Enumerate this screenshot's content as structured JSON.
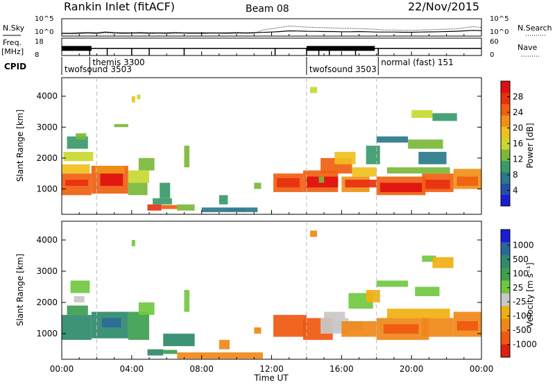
{
  "header": {
    "title": "Rankin Inlet (fitACF)",
    "beam": "Beam 08",
    "date": "22/Nov/2015"
  },
  "chart_data": [
    {
      "type": "line",
      "panel": "sky-noise",
      "left_label": "N.Sky",
      "right_label": "N.Search",
      "left_ticks": [
        "10^5",
        "10^0"
      ],
      "right_ticks": [
        "10^5",
        "10^0"
      ],
      "ylim": [
        1,
        100000
      ],
      "log_scale": true,
      "x_hours": [
        0,
        0.5,
        1,
        1.5,
        2,
        2.5,
        3,
        3.5,
        4,
        4.5,
        5,
        5.5,
        6,
        6.5,
        7,
        7.5,
        8,
        8.5,
        9,
        9.5,
        10,
        10.5,
        11,
        11.5,
        12,
        12.5,
        13,
        13.5,
        14,
        14.5,
        15,
        15.5,
        16,
        16.5,
        17,
        17.5,
        18,
        18.5,
        19,
        19.5,
        20,
        20.5,
        21,
        21.5,
        22,
        22.5,
        23,
        23.5,
        24
      ],
      "n_sky": [
        3,
        3,
        4,
        5,
        4,
        8,
        5,
        4,
        4,
        5,
        4,
        4,
        4,
        5,
        4,
        4,
        4,
        4,
        4,
        4,
        5,
        4,
        5,
        6,
        8,
        12,
        20,
        18,
        15,
        14,
        12,
        12,
        10,
        10,
        12,
        10,
        8,
        8,
        8,
        7,
        7,
        8,
        9,
        10,
        12,
        15,
        20,
        30,
        25
      ],
      "n_search": [
        2,
        2,
        2,
        3,
        2,
        4,
        3,
        2,
        3,
        3,
        2,
        3,
        2,
        3,
        3,
        2,
        2,
        3,
        3,
        2,
        3,
        3,
        3,
        40,
        120,
        300,
        900,
        600,
        400,
        300,
        250,
        200,
        150,
        150,
        120,
        100,
        60,
        40,
        40,
        30,
        30,
        40,
        50,
        60,
        80,
        100,
        200,
        600,
        300
      ]
    },
    {
      "type": "line",
      "panel": "frequency",
      "left_label": "Freq.",
      "left_unit": "[MHz]",
      "right_label": "Nave",
      "left_ticks": [
        "18",
        "8"
      ],
      "right_ticks": [
        "60",
        "0"
      ],
      "ylim": [
        8,
        18
      ],
      "freq_mhz": [
        {
          "start": 0,
          "end": 2,
          "value": 12
        },
        {
          "start": 2,
          "end": 14,
          "value": 12
        },
        {
          "start": 14,
          "end": 18,
          "value": 12
        },
        {
          "start": 18,
          "end": 24,
          "value": 12
        }
      ],
      "freq_solid_blocks": [
        {
          "start": 0,
          "end": 1.7,
          "value": 12
        },
        {
          "start": 14,
          "end": 17.9,
          "value": 12
        }
      ],
      "nave_dotted": 24,
      "markers_hours": [
        1.6,
        2.6,
        4.0,
        5.0,
        7.0,
        12.2,
        14.0,
        14.7,
        15.3,
        16.8,
        18.1
      ]
    },
    {
      "type": "table",
      "panel": "cpid",
      "left_label": "CPID",
      "labels": [
        {
          "text": "twofsound 3503",
          "start": 0.0,
          "row": "lower"
        },
        {
          "text": "themis 3300",
          "start": 1.6,
          "row": "upper"
        },
        {
          "text": "twofsound 3503",
          "start": 14.0,
          "row": "lower"
        },
        {
          "text": "normal (fast) 151",
          "start": 18.1,
          "row": "upper"
        }
      ]
    },
    {
      "type": "heatmap",
      "panel": "power",
      "ylabel": "Slant Range [km]",
      "yticks": [
        1000,
        2000,
        3000,
        4000
      ],
      "ylim": [
        180,
        4600
      ],
      "colorbar_label": "Power [dB]",
      "colorbar_ticks": [
        4,
        8,
        12,
        16,
        20,
        24,
        28
      ],
      "colorbar_range": [
        0,
        32
      ],
      "colors": [
        "#1c1cd8",
        "#2550a8",
        "#2a7a8a",
        "#3a9a6a",
        "#7ab83a",
        "#c8d830",
        "#f0c020",
        "#f09018",
        "#f06010",
        "#e83010",
        "#e01010"
      ],
      "cells": [
        [
          0.0,
          1.7,
          800,
          1500,
          26
        ],
        [
          0.2,
          1.5,
          1100,
          1300,
          29
        ],
        [
          0.0,
          1.6,
          1500,
          1800,
          20
        ],
        [
          0.3,
          1.5,
          2300,
          2700,
          10
        ],
        [
          0.8,
          1.4,
          2600,
          2800,
          14
        ],
        [
          0.1,
          1.8,
          1900,
          2200,
          16
        ],
        [
          1.7,
          3.8,
          850,
          1750,
          26
        ],
        [
          2.2,
          3.5,
          1100,
          1500,
          30
        ],
        [
          1.9,
          3.6,
          1500,
          1750,
          22
        ],
        [
          3.0,
          3.8,
          3000,
          3100,
          12
        ],
        [
          3.8,
          4.9,
          800,
          1200,
          14
        ],
        [
          3.8,
          5.0,
          1200,
          1600,
          17
        ],
        [
          4.4,
          5.3,
          1600,
          2000,
          13
        ],
        [
          4.0,
          4.2,
          3800,
          4000,
          20
        ],
        [
          4.3,
          4.5,
          3900,
          4050,
          16
        ],
        [
          4.9,
          5.7,
          300,
          500,
          27
        ],
        [
          5.7,
          6.6,
          350,
          480,
          24
        ],
        [
          5.2,
          6.3,
          500,
          700,
          10
        ],
        [
          6.6,
          7.6,
          300,
          500,
          12
        ],
        [
          5.6,
          6.2,
          700,
          1200,
          10
        ],
        [
          7.0,
          7.3,
          1700,
          2400,
          12
        ],
        [
          8.0,
          11.2,
          250,
          400,
          8
        ],
        [
          9.0,
          9.5,
          500,
          800,
          10
        ],
        [
          9.5,
          10.5,
          300,
          350,
          6
        ],
        [
          11.0,
          11.4,
          1000,
          1200,
          12
        ],
        [
          12.1,
          13.8,
          900,
          1500,
          24
        ],
        [
          12.3,
          13.6,
          1050,
          1350,
          29
        ],
        [
          13.8,
          15.8,
          900,
          1600,
          26
        ],
        [
          14.0,
          15.8,
          1050,
          1400,
          30
        ],
        [
          14.8,
          16.6,
          1500,
          2000,
          24
        ],
        [
          15.6,
          16.8,
          1800,
          2200,
          20
        ],
        [
          14.2,
          14.6,
          4100,
          4300,
          16
        ],
        [
          14.7,
          15.0,
          1200,
          1400,
          14
        ],
        [
          16.0,
          17.6,
          900,
          1400,
          22
        ],
        [
          16.2,
          18.0,
          1050,
          1300,
          28
        ],
        [
          16.6,
          18.0,
          1400,
          1700,
          18
        ],
        [
          17.4,
          18.2,
          1800,
          2400,
          10
        ],
        [
          18.0,
          20.8,
          800,
          1400,
          26
        ],
        [
          18.2,
          20.6,
          900,
          1200,
          30
        ],
        [
          20.6,
          22.4,
          900,
          1500,
          24
        ],
        [
          20.8,
          22.2,
          1000,
          1300,
          28
        ],
        [
          22.4,
          24.0,
          1000,
          1650,
          22
        ],
        [
          22.6,
          23.8,
          1100,
          1400,
          26
        ],
        [
          18.6,
          22.2,
          1500,
          1700,
          12
        ],
        [
          20.4,
          22.0,
          1800,
          2200,
          8
        ],
        [
          19.8,
          21.8,
          2300,
          2600,
          14
        ],
        [
          20.0,
          21.2,
          3300,
          3550,
          16
        ],
        [
          21.2,
          22.6,
          3200,
          3450,
          10
        ],
        [
          18.0,
          19.8,
          2500,
          2700,
          8
        ]
      ]
    },
    {
      "type": "heatmap",
      "panel": "velocity",
      "ylabel": "Slant Range [km]",
      "yticks": [
        1000,
        2000,
        3000,
        4000
      ],
      "ylim": [
        180,
        4600
      ],
      "colorbar_label": "Velocity [m s^-1]",
      "colorbar_ticks": [
        "1000",
        "500",
        "100",
        "25",
        "-25",
        "-100",
        "-500",
        "-1000"
      ],
      "colors": [
        "#1c1cd8",
        "#2a6a9a",
        "#2e8a6a",
        "#3ca050",
        "#70c840",
        "#c8c8c8",
        "#f0b010",
        "#f08818",
        "#f05810",
        "#e02010"
      ],
      "cells": [
        [
          0.0,
          1.7,
          800,
          1600,
          2
        ],
        [
          0.3,
          1.5,
          1600,
          1900,
          3
        ],
        [
          0.5,
          1.6,
          2300,
          2700,
          4
        ],
        [
          0.7,
          1.3,
          2000,
          2200,
          5
        ],
        [
          1.7,
          3.8,
          850,
          1700,
          2
        ],
        [
          2.3,
          3.4,
          1200,
          1500,
          1
        ],
        [
          3.8,
          5.0,
          800,
          1700,
          3
        ],
        [
          4.4,
          5.3,
          1600,
          2000,
          4
        ],
        [
          4.0,
          4.2,
          3800,
          4000,
          4
        ],
        [
          4.9,
          5.8,
          300,
          500,
          2
        ],
        [
          5.8,
          6.6,
          350,
          480,
          3
        ],
        [
          5.8,
          7.6,
          600,
          1000,
          2
        ],
        [
          7.0,
          7.3,
          1700,
          2400,
          4
        ],
        [
          6.6,
          11.5,
          200,
          400,
          7
        ],
        [
          9.0,
          9.6,
          500,
          800,
          7
        ],
        [
          11.0,
          11.4,
          1000,
          1200,
          7
        ],
        [
          12.1,
          14.0,
          900,
          1600,
          8
        ],
        [
          13.8,
          15.5,
          800,
          1500,
          8
        ],
        [
          14.8,
          16.4,
          1000,
          1500,
          5
        ],
        [
          15.0,
          16.2,
          1500,
          1700,
          5
        ],
        [
          15.4,
          17.2,
          1100,
          1400,
          5
        ],
        [
          16.0,
          18.0,
          900,
          1400,
          7
        ],
        [
          16.4,
          17.8,
          1800,
          2300,
          4
        ],
        [
          17.4,
          18.2,
          2000,
          2400,
          6
        ],
        [
          18.0,
          21.0,
          800,
          1500,
          7
        ],
        [
          18.4,
          20.4,
          1000,
          1300,
          8
        ],
        [
          20.6,
          22.4,
          900,
          1500,
          7
        ],
        [
          22.4,
          24.0,
          900,
          1700,
          7
        ],
        [
          22.6,
          23.8,
          1100,
          1400,
          8
        ],
        [
          18.6,
          22.2,
          1500,
          1800,
          6
        ],
        [
          20.2,
          21.6,
          2200,
          2500,
          4
        ],
        [
          20.6,
          21.4,
          3300,
          3500,
          4
        ],
        [
          21.2,
          22.4,
          3100,
          3450,
          6
        ],
        [
          14.2,
          14.6,
          4100,
          4300,
          7
        ],
        [
          18.0,
          19.8,
          2500,
          2700,
          4
        ]
      ]
    }
  ],
  "axes": {
    "x_ticks": [
      "00:00",
      "04:00",
      "08:00",
      "12:00",
      "16:00",
      "20:00",
      "00:00"
    ],
    "x_tick_hours": [
      0,
      4,
      8,
      12,
      16,
      20,
      24
    ],
    "xlabel": "Time UT",
    "dashed_lines_hours": [
      2,
      14,
      18
    ]
  }
}
